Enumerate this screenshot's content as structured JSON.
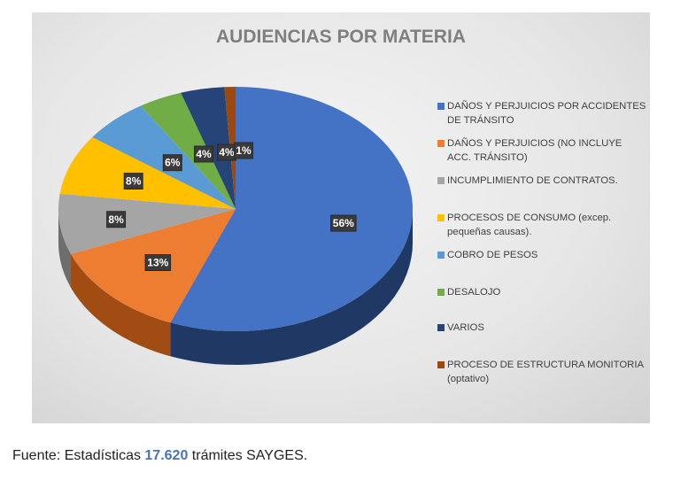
{
  "chart_data": {
    "type": "pie",
    "style": "3d",
    "title": "AUDIENCIAS POR MATERIA",
    "legend_position": "right",
    "start": "top-clockwise",
    "slices": [
      {
        "label": "DAÑOS Y PERJUICIOS POR ACCIDENTES DE TRÁNSITO",
        "value": 56,
        "data_label": "56%",
        "color": "#4472c4",
        "side": "#203864"
      },
      {
        "label": "DAÑOS Y PERJUICIOS (NO INCLUYE ACC. TRÁNSITO)",
        "value": 13,
        "data_label": "13%",
        "color": "#ed7d31",
        "side": "#a04c12"
      },
      {
        "label": "INCUMPLIMIENTO DE CONTRATOS.",
        "value": 8,
        "data_label": "8%",
        "color": "#a5a5a5",
        "side": "#6e6e6e"
      },
      {
        "label": "PROCESOS DE CONSUMO (excep. pequeñas causas).",
        "value": 8,
        "data_label": "8%",
        "color": "#ffc000",
        "side": "#a57c00"
      },
      {
        "label": "COBRO DE PESOS",
        "value": 6,
        "data_label": "6%",
        "color": "#5b9bd5",
        "side": "#2e6aa0"
      },
      {
        "label": "DESALOJO",
        "value": 4,
        "data_label": "4%",
        "color": "#70ad47",
        "side": "#436a2a"
      },
      {
        "label": "VARIOS",
        "value": 4,
        "data_label": "4%",
        "color": "#264478",
        "side": "#172a4a"
      },
      {
        "label": "PROCESO DE ESTRUCTURA MONITORIA (optativo)",
        "value": 1,
        "data_label": "1%",
        "color": "#9e480e",
        "side": "#5e2a08"
      }
    ]
  },
  "footer": {
    "prefix": "Fuente: Estadísticas ",
    "count": "17.620",
    "suffix": " trámites SAYGES."
  }
}
